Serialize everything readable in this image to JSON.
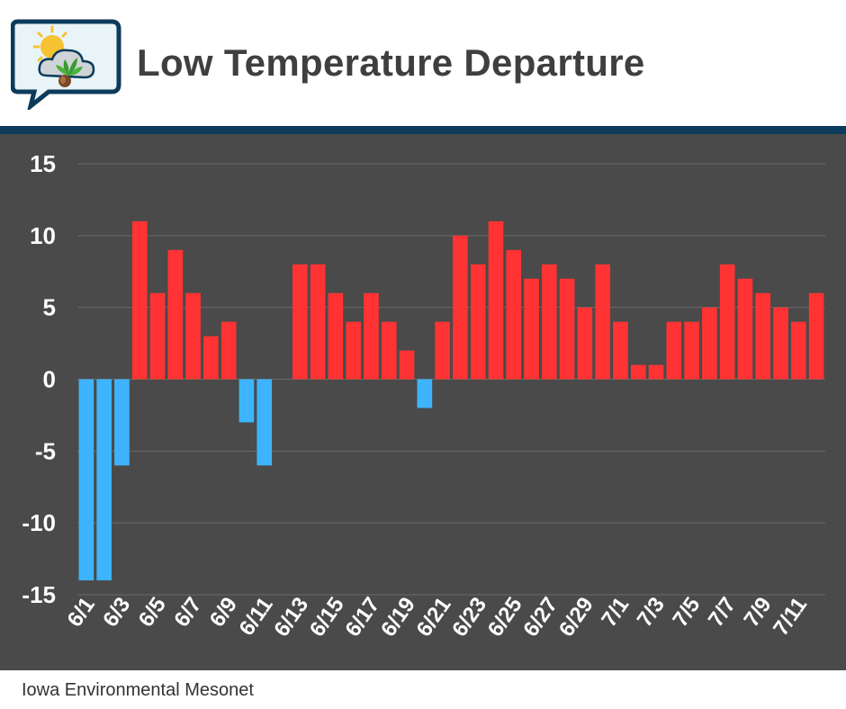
{
  "header": {
    "title": "Low Temperature Departure"
  },
  "footer": {
    "source": "Iowa Environmental Mesonet"
  },
  "colors": {
    "positive": "#ff3333",
    "negative": "#3eb4ff",
    "background": "#4a4a4a",
    "accent": "#0c3b5b"
  },
  "chart_data": {
    "type": "bar",
    "title": "Low Temperature Departure",
    "xlabel": "",
    "ylabel": "",
    "ylim": [
      -15,
      15
    ],
    "yticks": [
      15,
      10,
      5,
      0,
      -5,
      -10,
      -15
    ],
    "grid": true,
    "categories": [
      "6/1",
      "6/2",
      "6/3",
      "6/4",
      "6/5",
      "6/6",
      "6/7",
      "6/8",
      "6/9",
      "6/10",
      "6/11",
      "6/12",
      "6/13",
      "6/14",
      "6/15",
      "6/16",
      "6/17",
      "6/18",
      "6/19",
      "6/20",
      "6/21",
      "6/22",
      "6/23",
      "6/24",
      "6/25",
      "6/26",
      "6/27",
      "6/28",
      "6/29",
      "6/30",
      "7/1",
      "7/2",
      "7/3",
      "7/4",
      "7/5",
      "7/6",
      "7/7",
      "7/8",
      "7/9",
      "7/10",
      "7/11",
      "7/12"
    ],
    "tick_labels": [
      "6/1",
      "6/3",
      "6/5",
      "6/7",
      "6/9",
      "6/11",
      "6/13",
      "6/15",
      "6/17",
      "6/19",
      "6/21",
      "6/23",
      "6/25",
      "6/27",
      "6/29",
      "7/1",
      "7/3",
      "7/5",
      "7/7",
      "7/9",
      "7/11"
    ],
    "values": [
      -14,
      -14,
      -6,
      11,
      6,
      9,
      6,
      3,
      4,
      -3,
      -6,
      0,
      8,
      8,
      6,
      4,
      6,
      4,
      2,
      -2,
      4,
      10,
      8,
      11,
      9,
      7,
      8,
      7,
      5,
      8,
      4,
      1,
      1,
      4,
      4,
      5,
      8,
      7,
      6,
      5,
      4,
      6
    ]
  }
}
